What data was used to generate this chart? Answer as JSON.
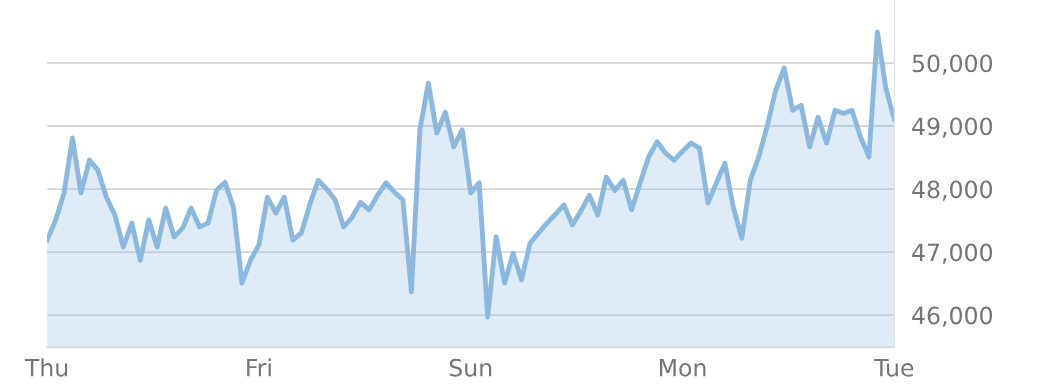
{
  "chart_data": {
    "type": "area",
    "categories": [
      "Thu",
      null,
      null,
      null,
      null,
      null,
      null,
      null,
      null,
      null,
      null,
      null,
      null,
      null,
      null,
      null,
      null,
      null,
      null,
      null,
      null,
      null,
      null,
      null,
      null,
      "Fri",
      null,
      null,
      null,
      null,
      null,
      null,
      null,
      null,
      null,
      null,
      null,
      null,
      null,
      null,
      null,
      null,
      null,
      null,
      null,
      null,
      null,
      null,
      null,
      null,
      "Sun",
      null,
      null,
      null,
      null,
      null,
      null,
      null,
      null,
      null,
      null,
      null,
      null,
      null,
      null,
      null,
      null,
      null,
      null,
      null,
      null,
      null,
      null,
      null,
      null,
      "Mon",
      null,
      null,
      null,
      null,
      null,
      null,
      null,
      null,
      null,
      null,
      null,
      null,
      null,
      null,
      null,
      null,
      null,
      null,
      null,
      null,
      null,
      null,
      null,
      null,
      "Tue"
    ],
    "series": [
      {
        "color": "#8cb8e0",
        "values": [
          47190,
          47500,
          47940,
          48810,
          47940,
          48460,
          48300,
          47870,
          47590,
          47080,
          47460,
          46870,
          47510,
          47080,
          47700,
          47240,
          47380,
          47700,
          47400,
          47460,
          47980,
          48110,
          47710,
          46510,
          46870,
          47110,
          47870,
          47620,
          47870,
          47190,
          47300,
          47750,
          48140,
          48000,
          47830,
          47400,
          47550,
          47790,
          47670,
          47900,
          48100,
          47950,
          47830,
          46370,
          48940,
          49680,
          48890,
          49220,
          48670,
          48940,
          47940,
          48100,
          45970,
          47240,
          46510,
          46980,
          46560,
          47140,
          47300,
          47460,
          47600,
          47750,
          47430,
          47650,
          47900,
          47590,
          48190,
          47980,
          48140,
          47670,
          48100,
          48510,
          48750,
          48570,
          48460,
          48600,
          48730,
          48650,
          47780,
          48100,
          48410,
          47710,
          47220,
          48140,
          48510,
          49000,
          49570,
          49920,
          49250,
          49330,
          48670,
          49140,
          48730,
          49250,
          49200,
          49250,
          48830,
          48510,
          50490,
          49600,
          49100
        ]
      }
    ],
    "ylim": [
      45490,
      51000
    ],
    "yticks": [
      {
        "value": 46000,
        "label": "46,000"
      },
      {
        "value": 47000,
        "label": "47,000"
      },
      {
        "value": 48000,
        "label": "48,000"
      },
      {
        "value": 49000,
        "label": "49,000"
      },
      {
        "value": 50000,
        "label": "50,000"
      }
    ],
    "grid": "y"
  }
}
